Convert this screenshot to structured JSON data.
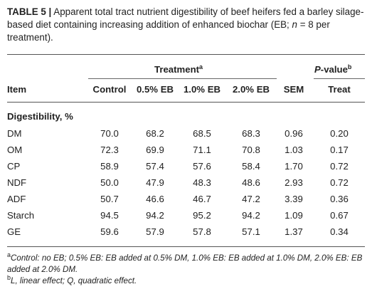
{
  "caption": {
    "label": "TABLE 5 |",
    "text_1": "Apparent total tract nutrient digestibility of beef heifers fed a barley silage-based diet containing increasing addition of enhanced biochar (EB;",
    "n_symbol": "n",
    "text_2": "= 8 per treatment)."
  },
  "header": {
    "group_treatment": "Treatment",
    "group_treatment_sup": "a",
    "group_pvalue_prefix": "P",
    "group_pvalue_suffix": "-value",
    "group_pvalue_sup": "b",
    "columns": [
      "Item",
      "Control",
      "0.5% EB",
      "1.0% EB",
      "2.0% EB",
      "SEM",
      "Treat"
    ]
  },
  "section_label": "Digestibility, %",
  "rows": [
    {
      "item": "DM",
      "control": "70.0",
      "eb05": "68.2",
      "eb10": "68.5",
      "eb20": "68.3",
      "sem": "0.96",
      "treat": "0.20"
    },
    {
      "item": "OM",
      "control": "72.3",
      "eb05": "69.9",
      "eb10": "71.1",
      "eb20": "70.8",
      "sem": "1.03",
      "treat": "0.17"
    },
    {
      "item": "CP",
      "control": "58.9",
      "eb05": "57.4",
      "eb10": "57.6",
      "eb20": "58.4",
      "sem": "1.70",
      "treat": "0.72"
    },
    {
      "item": "NDF",
      "control": "50.0",
      "eb05": "47.9",
      "eb10": "48.3",
      "eb20": "48.6",
      "sem": "2.93",
      "treat": "0.72"
    },
    {
      "item": "ADF",
      "control": "50.7",
      "eb05": "46.6",
      "eb10": "46.7",
      "eb20": "47.2",
      "sem": "3.39",
      "treat": "0.36"
    },
    {
      "item": "Starch",
      "control": "94.5",
      "eb05": "94.2",
      "eb10": "95.2",
      "eb20": "94.2",
      "sem": "1.09",
      "treat": "0.67"
    },
    {
      "item": "GE",
      "control": "59.6",
      "eb05": "57.9",
      "eb10": "57.8",
      "eb20": "57.1",
      "sem": "1.37",
      "treat": "0.34"
    }
  ],
  "footnotes": [
    {
      "mark": "a",
      "text": "Control: no EB; 0.5% EB: EB added at 0.5% DM, 1.0% EB: EB added at 1.0% DM, 2.0% EB: EB added at 2.0% DM."
    },
    {
      "mark": "b",
      "text": "L, linear effect; Q, quadratic effect."
    }
  ]
}
